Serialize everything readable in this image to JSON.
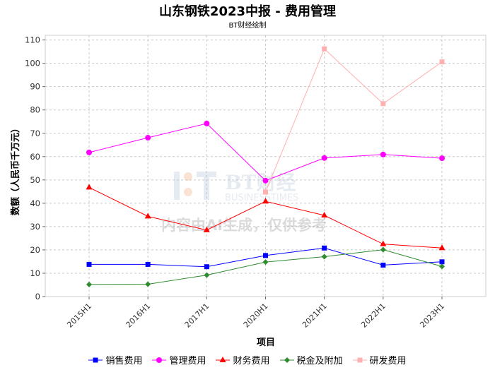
{
  "header": {
    "title": "山东钢铁2023中报 - 费用管理",
    "subtitle": "BT财经绘制"
  },
  "watermark": {
    "brand": "BT财经",
    "brand_en": "BUSINESSTIMES",
    "notice": "内容由AI生成，仅供参考"
  },
  "chart_data": {
    "type": "line",
    "title": "山东钢铁2023中报 - 费用管理",
    "subtitle": "BT财经绘制",
    "xlabel": "项目",
    "ylabel": "数额（人民币千万元）",
    "ylim": [
      0,
      112
    ],
    "yticks": [
      0,
      10,
      20,
      30,
      40,
      50,
      60,
      70,
      80,
      90,
      100,
      110
    ],
    "grid": true,
    "legend_position": "bottom",
    "categories": [
      "2015H1",
      "2016H1",
      "2017H1",
      "2020H1",
      "2021H1",
      "2022H1",
      "2023H1"
    ],
    "series": [
      {
        "name": "销售费用",
        "color": "#0000ff",
        "marker": "square",
        "values": [
          13.8,
          13.8,
          12.8,
          17.6,
          20.8,
          13.5,
          14.9
        ]
      },
      {
        "name": "管理费用",
        "color": "#ff00ff",
        "marker": "circle",
        "values": [
          61.8,
          68.1,
          74.2,
          49.7,
          59.4,
          60.9,
          59.3
        ]
      },
      {
        "name": "财务费用",
        "color": "#ff0000",
        "marker": "triangle",
        "values": [
          46.8,
          34.4,
          28.5,
          40.8,
          34.8,
          22.5,
          20.8
        ]
      },
      {
        "name": "税金及附加",
        "color": "#2e8b2e",
        "marker": "diamond",
        "values": [
          5.2,
          5.3,
          9.2,
          14.8,
          17.1,
          20.1,
          12.9
        ]
      },
      {
        "name": "研发费用",
        "color": "#ffb0b0",
        "marker": "square",
        "values": [
          null,
          null,
          null,
          44.8,
          106.2,
          82.7,
          100.6
        ]
      }
    ]
  }
}
